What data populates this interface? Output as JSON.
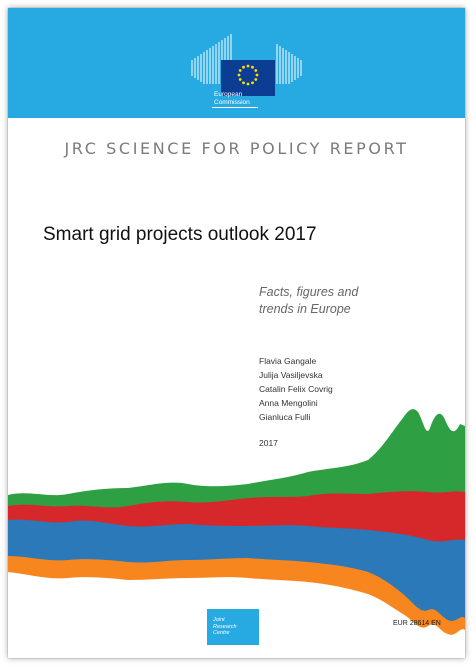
{
  "header": {
    "logo": {
      "institution_lines": [
        "European",
        "Commission"
      ],
      "icon": "european-commission-berlaymont-eu-flag-icon"
    }
  },
  "series_title": "JRC SCIENCE FOR POLICY REPORT",
  "title": "Smart grid projects outlook 2017",
  "subtitle_lines": [
    "Facts, figures and",
    "trends in Europe"
  ],
  "authors": [
    "Flavia Gangale",
    "Julija Vasiljevska",
    "Catalin Felix Covrig",
    "Anna Mengolini",
    "Gianluca Fulli"
  ],
  "year": "2017",
  "footer": {
    "jrc_logo_lines": [
      "Joint",
      "Research",
      "Centre"
    ],
    "report_number": "EUR 28614 EN"
  },
  "colors": {
    "brand_blue": "#27a9e1",
    "stream_green": "#2ea043",
    "stream_red": "#d6282b",
    "stream_blue": "#2b79b8",
    "stream_orange": "#f7861e"
  }
}
